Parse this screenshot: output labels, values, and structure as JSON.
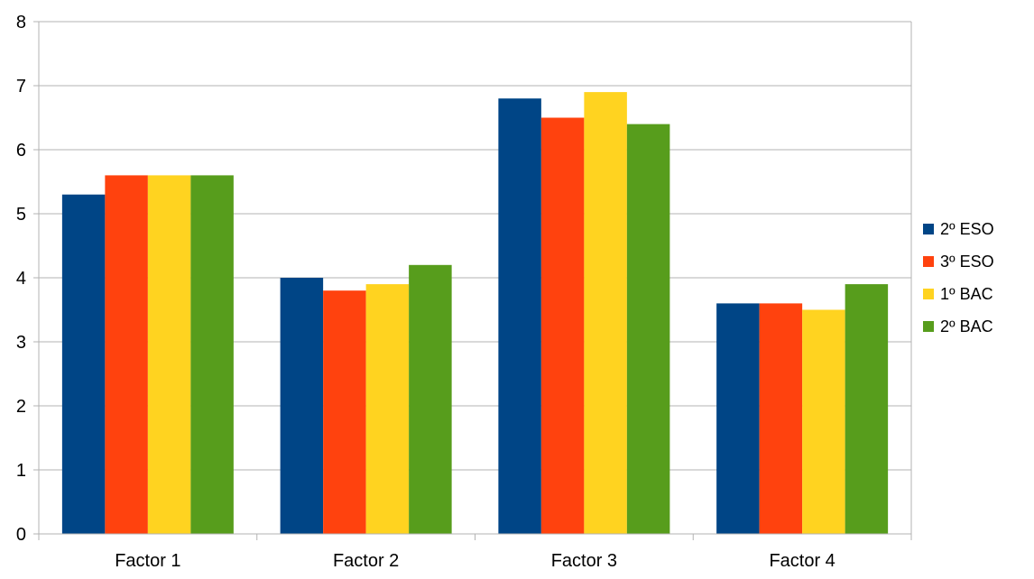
{
  "chart_data": {
    "type": "bar",
    "categories": [
      "Factor 1",
      "Factor 2",
      "Factor 3",
      "Factor 4"
    ],
    "series": [
      {
        "name": "2º ESO",
        "color": "#004586",
        "values": [
          5.3,
          4.0,
          6.8,
          3.6
        ]
      },
      {
        "name": "3º ESO",
        "color": "#FF420E",
        "values": [
          5.6,
          3.8,
          6.5,
          3.6
        ]
      },
      {
        "name": "1º BAC",
        "color": "#FFD320",
        "values": [
          5.6,
          3.9,
          6.9,
          3.5
        ]
      },
      {
        "name": "2º BAC",
        "color": "#579D1C",
        "values": [
          5.6,
          4.2,
          6.4,
          3.9
        ]
      }
    ],
    "ylim": [
      0,
      8
    ],
    "yticks": [
      0,
      1,
      2,
      3,
      4,
      5,
      6,
      7,
      8
    ],
    "grid": true,
    "legend_position": "right",
    "title": "",
    "xlabel": "",
    "ylabel": ""
  }
}
